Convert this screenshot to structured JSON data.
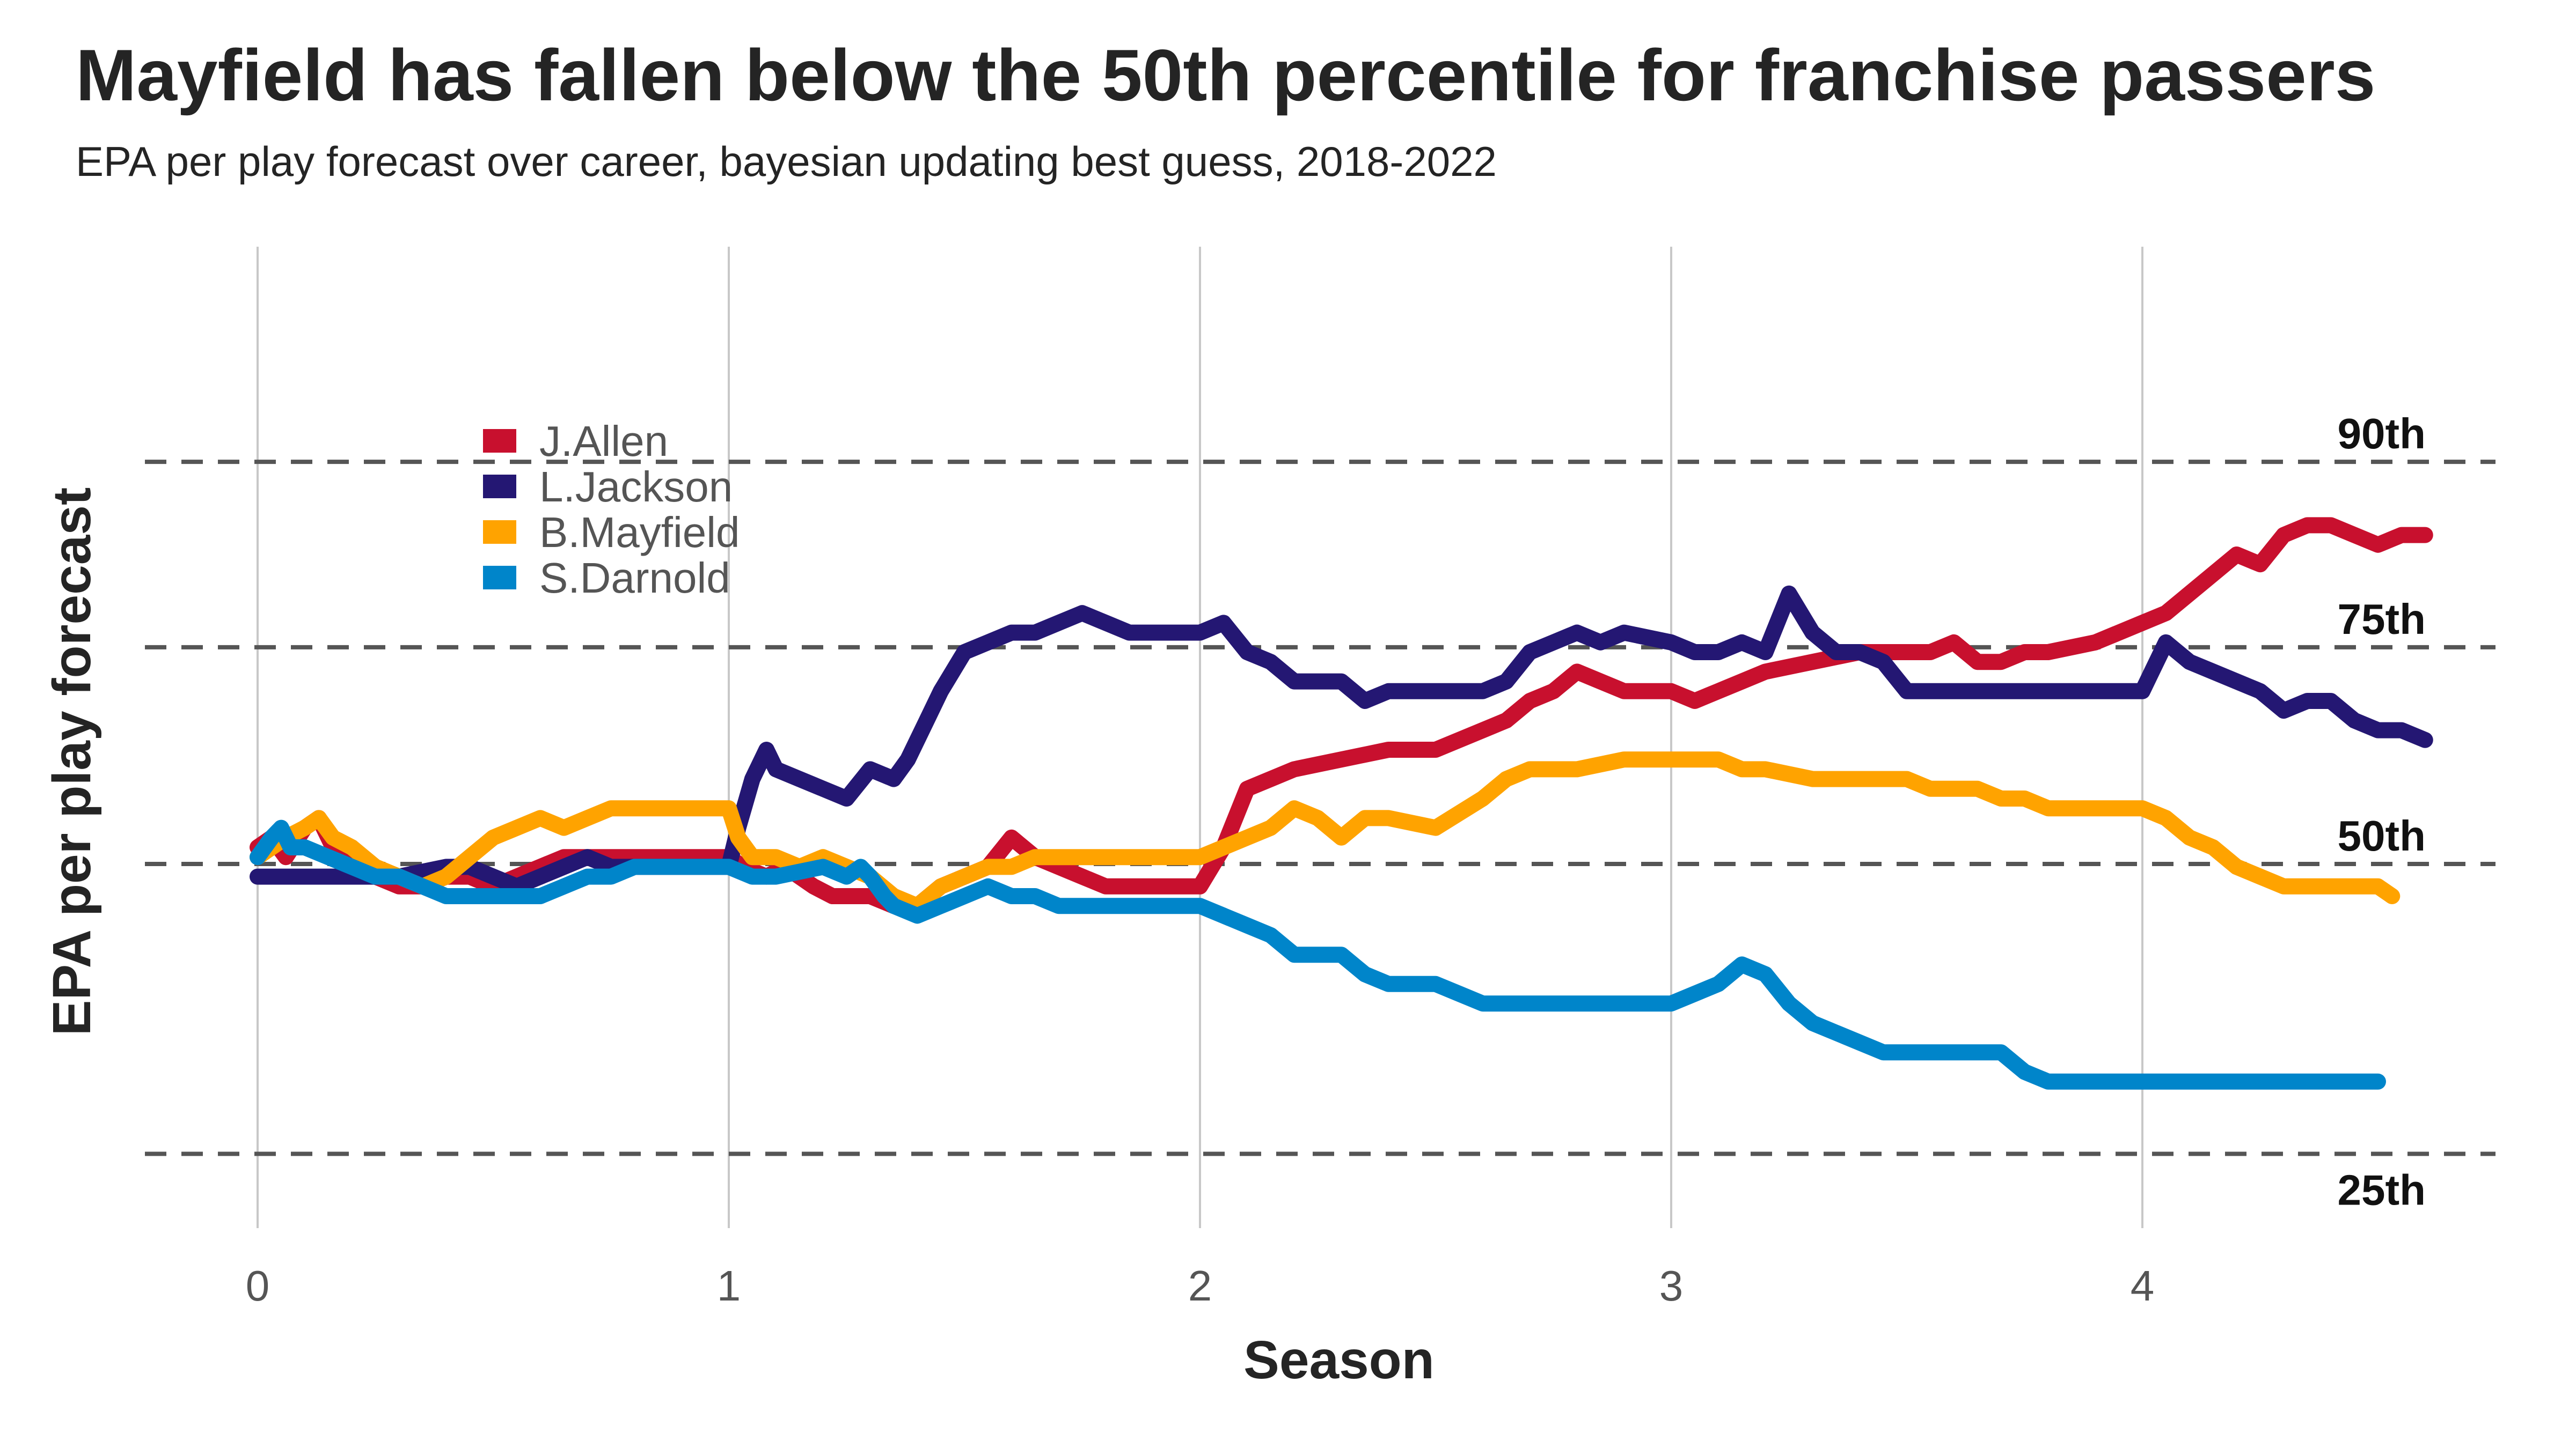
{
  "title": "Mayfield has fallen below the 50th percentile for franchise passers",
  "subtitle": "EPA per play forecast over career, bayesian updating best guess, 2018-2022",
  "chart_data": {
    "type": "line",
    "title": "Mayfield has fallen below the 50th percentile for franchise passers",
    "subtitle": "EPA per play forecast over career, bayesian updating best guess, 2018-2022",
    "xlabel": "Season",
    "ylabel": "EPA per play forecast",
    "xlim": [
      -0.22,
      4.65
    ],
    "ylim": [
      0.0,
      1.0
    ],
    "xticks": [
      0,
      1,
      2,
      3,
      4
    ],
    "grid": "vertical major gridlines",
    "legend_position": "top-left",
    "reference_lines": [
      {
        "label": "90th",
        "y": 0.895,
        "label_placement": "above"
      },
      {
        "label": "75th",
        "y": 0.705,
        "label_placement": "above"
      },
      {
        "label": "50th",
        "y": 0.483,
        "label_placement": "above"
      },
      {
        "label": "25th",
        "y": 0.186,
        "label_placement": "below"
      }
    ],
    "series": [
      {
        "name": "J.Allen",
        "color": "#C8102E",
        "x": [
          0,
          0.03,
          0.06,
          0.1,
          0.13,
          0.16,
          0.2,
          0.25,
          0.3,
          0.35,
          0.4,
          0.45,
          0.5,
          0.55,
          0.6,
          0.65,
          0.7,
          0.8,
          0.9,
          1.0,
          1.03,
          1.08,
          1.12,
          1.18,
          1.22,
          1.3,
          1.35,
          1.4,
          1.45,
          1.5,
          1.55,
          1.6,
          1.65,
          1.7,
          1.75,
          1.8,
          1.9,
          2.0,
          2.05,
          2.1,
          2.15,
          2.2,
          2.3,
          2.4,
          2.5,
          2.6,
          2.65,
          2.7,
          2.75,
          2.8,
          2.85,
          2.9,
          3.0,
          3.05,
          3.1,
          3.15,
          3.2,
          3.3,
          3.4,
          3.5,
          3.55,
          3.6,
          3.65,
          3.7,
          3.75,
          3.8,
          3.9,
          4.0,
          4.05,
          4.1,
          4.15,
          4.2,
          4.25,
          4.3,
          4.35,
          4.4,
          4.45,
          4.5,
          4.55,
          4.6
        ],
        "y": [
          0.5,
          0.51,
          0.49,
          0.52,
          0.53,
          0.5,
          0.48,
          0.47,
          0.46,
          0.46,
          0.47,
          0.47,
          0.46,
          0.47,
          0.48,
          0.49,
          0.49,
          0.49,
          0.49,
          0.49,
          0.48,
          0.47,
          0.48,
          0.46,
          0.45,
          0.45,
          0.44,
          0.44,
          0.46,
          0.47,
          0.48,
          0.51,
          0.49,
          0.48,
          0.47,
          0.46,
          0.46,
          0.46,
          0.5,
          0.56,
          0.57,
          0.58,
          0.59,
          0.6,
          0.6,
          0.62,
          0.63,
          0.65,
          0.66,
          0.68,
          0.67,
          0.66,
          0.66,
          0.65,
          0.66,
          0.67,
          0.68,
          0.69,
          0.7,
          0.7,
          0.7,
          0.71,
          0.69,
          0.69,
          0.7,
          0.7,
          0.71,
          0.73,
          0.74,
          0.76,
          0.78,
          0.8,
          0.79,
          0.82,
          0.83,
          0.83,
          0.82,
          0.81,
          0.82,
          0.82
        ]
      },
      {
        "name": "L.Jackson",
        "color": "#241773",
        "x": [
          0,
          0.03,
          0.1,
          0.2,
          0.3,
          0.4,
          0.45,
          0.5,
          0.55,
          0.6,
          0.65,
          0.7,
          0.75,
          0.8,
          0.9,
          1.0,
          1.02,
          1.05,
          1.08,
          1.1,
          1.15,
          1.2,
          1.25,
          1.3,
          1.35,
          1.38,
          1.42,
          1.45,
          1.5,
          1.55,
          1.6,
          1.65,
          1.7,
          1.75,
          1.8,
          1.85,
          1.9,
          2.0,
          2.05,
          2.1,
          2.15,
          2.2,
          2.3,
          2.35,
          2.4,
          2.5,
          2.6,
          2.65,
          2.7,
          2.75,
          2.8,
          2.85,
          2.9,
          3.0,
          3.05,
          3.1,
          3.15,
          3.2,
          3.25,
          3.3,
          3.35,
          3.4,
          3.45,
          3.5,
          3.55,
          3.6,
          3.7,
          3.8,
          4.0,
          4.05,
          4.1,
          4.15,
          4.2,
          4.25,
          4.3,
          4.35,
          4.4,
          4.45,
          4.5,
          4.55,
          4.6
        ],
        "y": [
          0.47,
          0.47,
          0.47,
          0.47,
          0.47,
          0.48,
          0.48,
          0.47,
          0.46,
          0.47,
          0.48,
          0.49,
          0.48,
          0.48,
          0.48,
          0.48,
          0.52,
          0.57,
          0.6,
          0.58,
          0.57,
          0.56,
          0.55,
          0.58,
          0.57,
          0.59,
          0.63,
          0.66,
          0.7,
          0.71,
          0.72,
          0.72,
          0.73,
          0.74,
          0.73,
          0.72,
          0.72,
          0.72,
          0.73,
          0.7,
          0.69,
          0.67,
          0.67,
          0.65,
          0.66,
          0.66,
          0.66,
          0.67,
          0.7,
          0.71,
          0.72,
          0.71,
          0.72,
          0.71,
          0.7,
          0.7,
          0.71,
          0.7,
          0.76,
          0.72,
          0.7,
          0.7,
          0.69,
          0.66,
          0.66,
          0.66,
          0.66,
          0.66,
          0.66,
          0.71,
          0.69,
          0.68,
          0.67,
          0.66,
          0.64,
          0.65,
          0.65,
          0.63,
          0.62,
          0.62,
          0.61
        ]
      },
      {
        "name": "B.Mayfield",
        "color": "#FFA300",
        "x": [
          0,
          0.03,
          0.06,
          0.1,
          0.13,
          0.16,
          0.2,
          0.25,
          0.3,
          0.35,
          0.4,
          0.45,
          0.5,
          0.55,
          0.6,
          0.65,
          0.7,
          0.75,
          0.8,
          0.9,
          1.0,
          1.02,
          1.05,
          1.1,
          1.15,
          1.2,
          1.25,
          1.3,
          1.35,
          1.4,
          1.45,
          1.5,
          1.55,
          1.6,
          1.65,
          1.7,
          1.8,
          2.0,
          2.05,
          2.1,
          2.15,
          2.2,
          2.25,
          2.3,
          2.35,
          2.4,
          2.5,
          2.6,
          2.65,
          2.7,
          2.75,
          2.8,
          2.9,
          3.0,
          3.05,
          3.1,
          3.15,
          3.2,
          3.3,
          3.4,
          3.5,
          3.55,
          3.6,
          3.65,
          3.7,
          3.75,
          3.8,
          4.0,
          4.05,
          4.1,
          4.15,
          4.2,
          4.25,
          4.3,
          4.35,
          4.4,
          4.45,
          4.5,
          4.53
        ],
        "y": [
          0.49,
          0.5,
          0.51,
          0.52,
          0.53,
          0.51,
          0.5,
          0.48,
          0.47,
          0.46,
          0.47,
          0.49,
          0.51,
          0.52,
          0.53,
          0.52,
          0.53,
          0.54,
          0.54,
          0.54,
          0.54,
          0.51,
          0.49,
          0.49,
          0.48,
          0.49,
          0.48,
          0.47,
          0.45,
          0.44,
          0.46,
          0.47,
          0.48,
          0.48,
          0.49,
          0.49,
          0.49,
          0.49,
          0.5,
          0.51,
          0.52,
          0.54,
          0.53,
          0.51,
          0.53,
          0.53,
          0.52,
          0.55,
          0.57,
          0.58,
          0.58,
          0.58,
          0.59,
          0.59,
          0.59,
          0.59,
          0.58,
          0.58,
          0.57,
          0.57,
          0.57,
          0.56,
          0.56,
          0.56,
          0.55,
          0.55,
          0.54,
          0.54,
          0.53,
          0.51,
          0.5,
          0.48,
          0.47,
          0.46,
          0.46,
          0.46,
          0.46,
          0.46,
          0.45
        ]
      },
      {
        "name": "S.Darnold",
        "color": "#0085CA",
        "x": [
          0,
          0.03,
          0.05,
          0.07,
          0.1,
          0.15,
          0.2,
          0.25,
          0.3,
          0.35,
          0.4,
          0.5,
          0.55,
          0.6,
          0.65,
          0.7,
          0.75,
          0.8,
          0.9,
          1.0,
          1.05,
          1.1,
          1.2,
          1.25,
          1.28,
          1.3,
          1.33,
          1.35,
          1.4,
          1.45,
          1.5,
          1.55,
          1.6,
          1.65,
          1.7,
          1.8,
          2.0,
          2.05,
          2.1,
          2.15,
          2.2,
          2.3,
          2.35,
          2.4,
          2.5,
          2.55,
          2.6,
          2.65,
          2.7,
          2.8,
          2.9,
          3.0,
          3.05,
          3.1,
          3.15,
          3.2,
          3.25,
          3.3,
          3.35,
          3.4,
          3.45,
          3.6,
          3.7,
          3.75,
          3.8,
          3.85,
          4.0,
          4.2,
          4.4,
          4.5
        ],
        "y": [
          0.49,
          0.51,
          0.52,
          0.5,
          0.5,
          0.49,
          0.48,
          0.47,
          0.47,
          0.46,
          0.45,
          0.45,
          0.45,
          0.45,
          0.46,
          0.47,
          0.47,
          0.48,
          0.48,
          0.48,
          0.47,
          0.47,
          0.48,
          0.47,
          0.48,
          0.47,
          0.45,
          0.44,
          0.43,
          0.44,
          0.45,
          0.46,
          0.45,
          0.45,
          0.44,
          0.44,
          0.44,
          0.43,
          0.42,
          0.41,
          0.39,
          0.39,
          0.37,
          0.36,
          0.36,
          0.35,
          0.34,
          0.34,
          0.34,
          0.34,
          0.34,
          0.34,
          0.35,
          0.36,
          0.38,
          0.37,
          0.34,
          0.32,
          0.31,
          0.3,
          0.29,
          0.29,
          0.29,
          0.27,
          0.26,
          0.26,
          0.26,
          0.26,
          0.26,
          0.26
        ]
      }
    ]
  }
}
